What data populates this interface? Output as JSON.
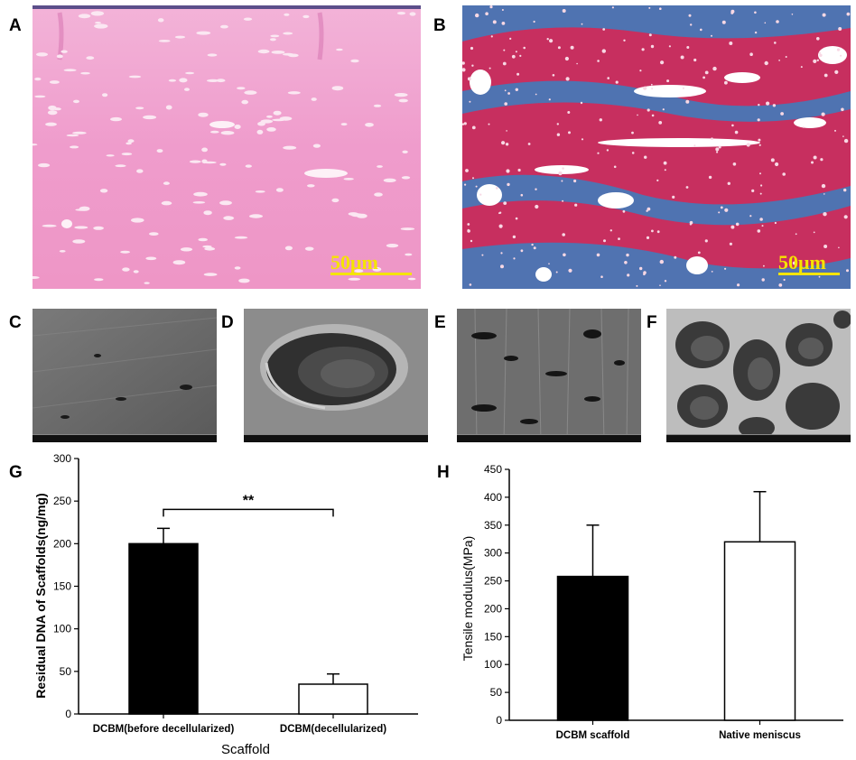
{
  "panels": {
    "a": {
      "letter": "A",
      "scalebar": "50μm"
    },
    "b": {
      "letter": "B",
      "scalebar": "50μm"
    },
    "c": {
      "letter": "C"
    },
    "d": {
      "letter": "D"
    },
    "e": {
      "letter": "E"
    },
    "f": {
      "letter": "F"
    },
    "g": {
      "letter": "G"
    },
    "h": {
      "letter": "H"
    }
  },
  "colors": {
    "he_stain": "#ef9ccc",
    "masson_red": "#cc2f62",
    "masson_blue": "#3b7fc0",
    "sem_gray": "#6f6f6f",
    "scalebar": "#f5e400"
  },
  "chart_data": [
    {
      "type": "bar",
      "panel": "G",
      "categories": [
        "DCBM(before decellularized)",
        "DCBM(decellularized)"
      ],
      "values": [
        200,
        35
      ],
      "errors": [
        18,
        12
      ],
      "bar_fill": [
        "#000000",
        "#ffffff"
      ],
      "xlabel": "Scaffold",
      "ylabel": "Residual DNA of Scaffolds(ng/mg)",
      "ylim": [
        0,
        300
      ],
      "yticks": [
        0,
        50,
        100,
        150,
        200,
        250,
        300
      ],
      "annotation": "**",
      "grid": false
    },
    {
      "type": "bar",
      "panel": "H",
      "categories": [
        "DCBM scaffold",
        "Native meniscus"
      ],
      "values": [
        258,
        320
      ],
      "errors": [
        92,
        90
      ],
      "bar_fill": [
        "#000000",
        "#ffffff"
      ],
      "xlabel": "",
      "ylabel": "Tensile modulus(MPa)",
      "ylim": [
        0,
        450
      ],
      "yticks": [
        0,
        50,
        100,
        150,
        200,
        250,
        300,
        350,
        400,
        450
      ],
      "grid": false
    }
  ]
}
